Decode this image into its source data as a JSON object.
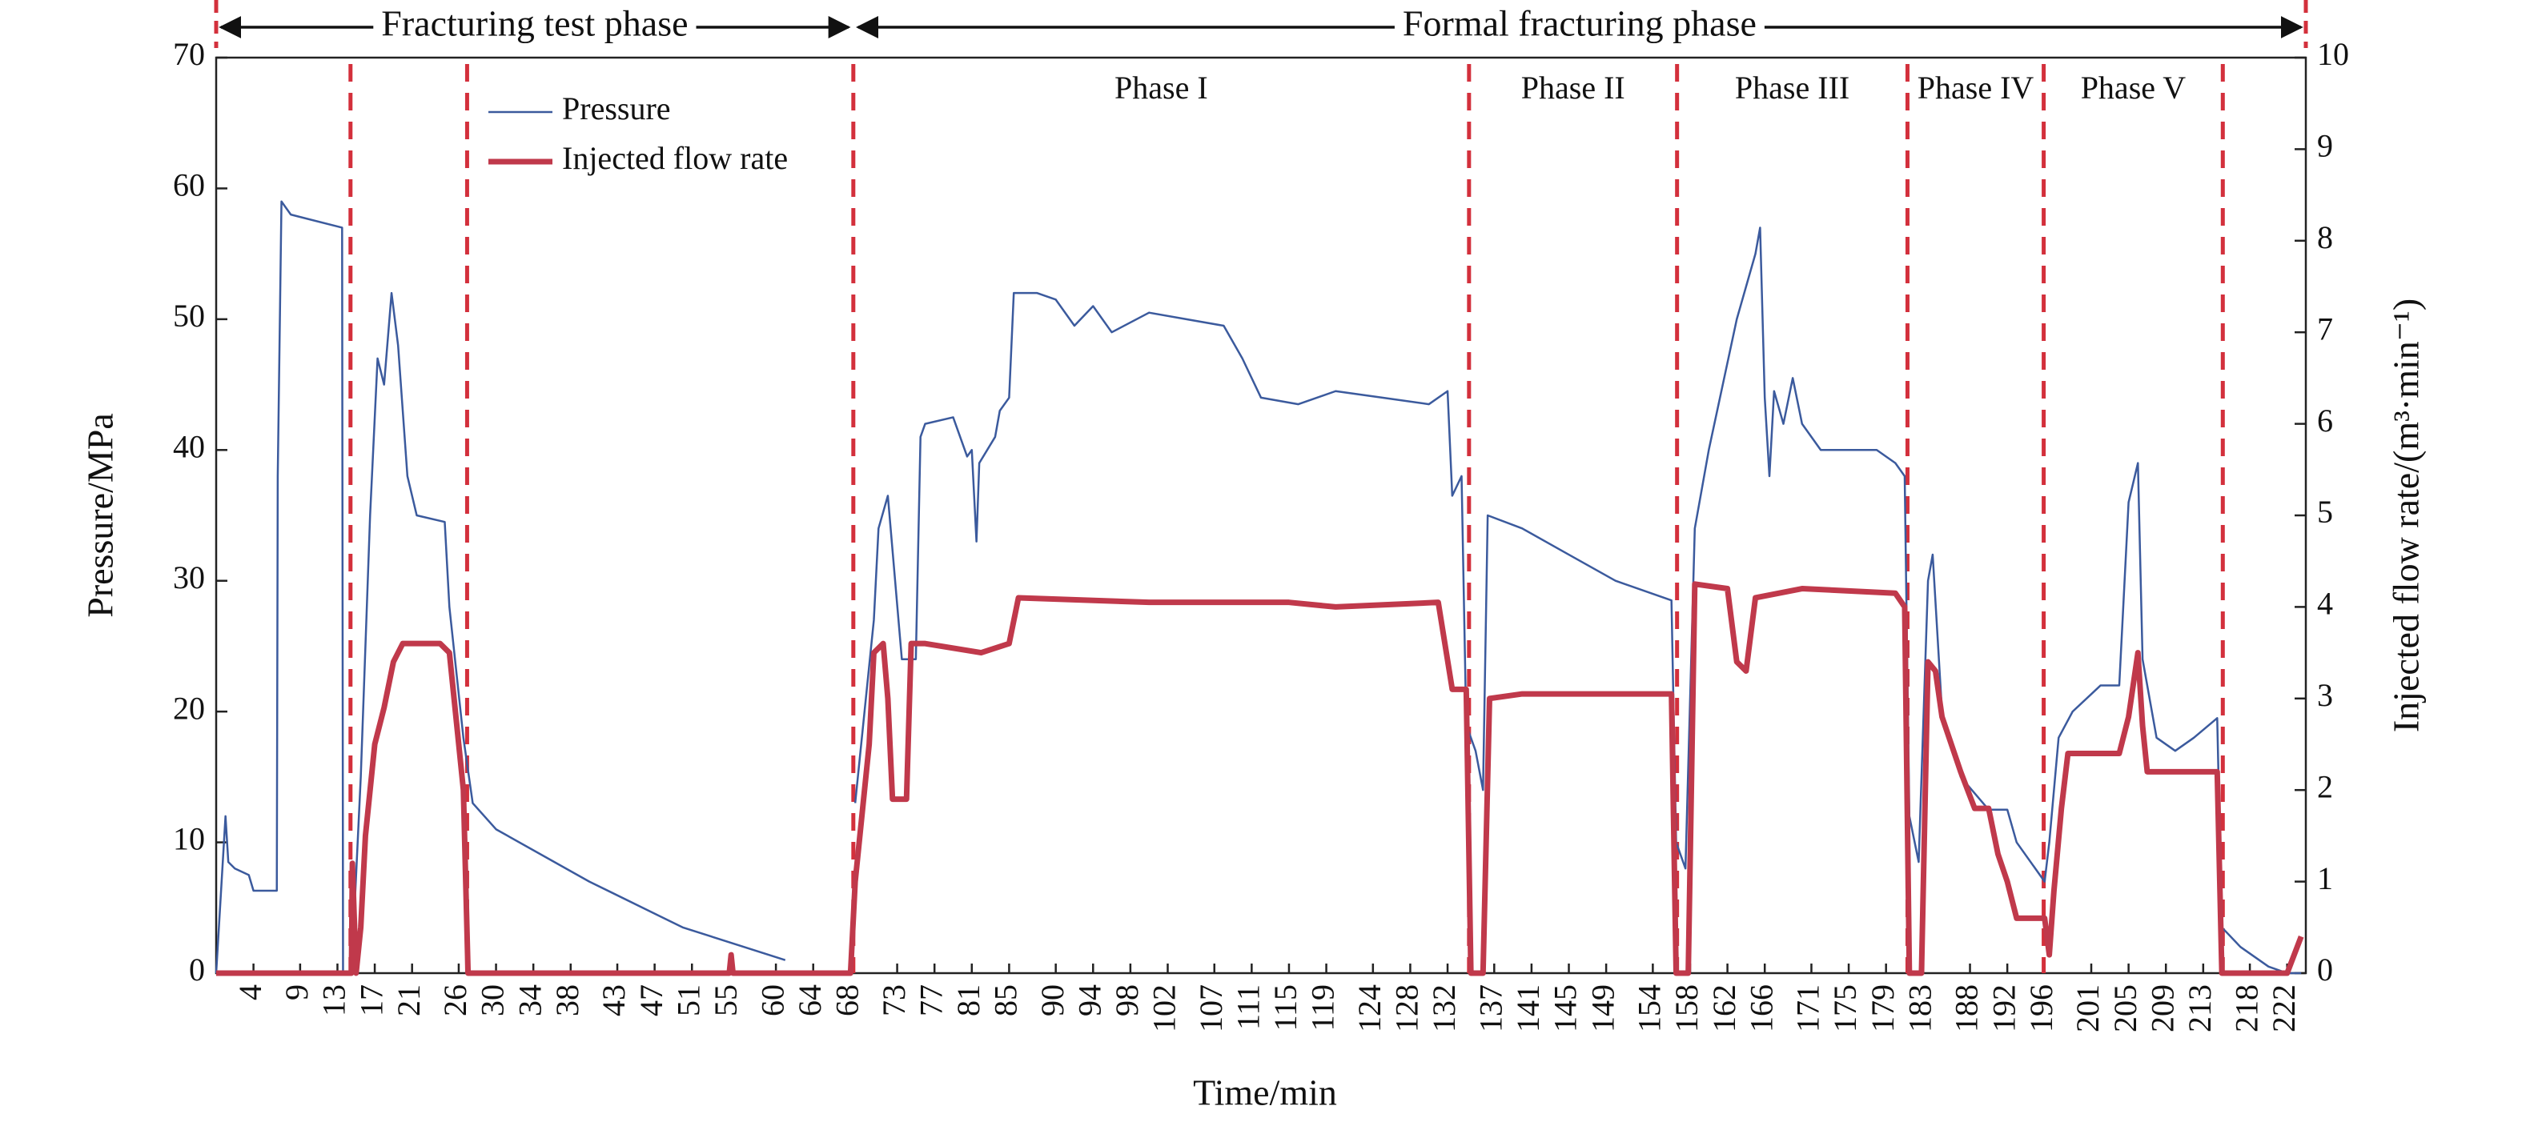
{
  "chart_data": {
    "type": "line",
    "x_label": "Time/min",
    "y_label": "Pressure/MPa",
    "y2_label": "Injected flow rate/(m³·min⁻¹)",
    "xlim": [
      0,
      224
    ],
    "xticks": [
      4,
      9,
      13,
      17,
      21,
      26,
      30,
      34,
      38,
      43,
      47,
      51,
      55,
      60,
      64,
      68,
      73,
      77,
      81,
      85,
      90,
      94,
      98,
      102,
      107,
      111,
      115,
      119,
      124,
      128,
      132,
      137,
      141,
      145,
      149,
      154,
      158,
      162,
      166,
      171,
      175,
      179,
      183,
      188,
      192,
      196,
      201,
      205,
      209,
      213,
      218,
      222
    ],
    "ylim": [
      0,
      70
    ],
    "yticks": [
      0,
      10,
      20,
      30,
      40,
      50,
      60,
      70
    ],
    "y2lim": [
      0,
      10
    ],
    "y2ticks": [
      0,
      1,
      2,
      3,
      4,
      5,
      6,
      7,
      8,
      9,
      10
    ],
    "legend": "upper left",
    "boundary_color": "#d3303c",
    "phase_boundaries": [
      14.4,
      26.9,
      68.3,
      134.3,
      156.6,
      181.3,
      195.9,
      215.1
    ],
    "phase_labels": [
      "Phase I",
      "Phase II",
      "Phase III",
      "Phase IV",
      "Phase V"
    ],
    "stage_labels": [
      "Fracturing test phase",
      "Formal fracturing phase"
    ],
    "series": [
      {
        "name": "Pressure",
        "color": "#3b5a9d",
        "x": [
          0,
          1,
          1.3,
          2,
          3.5,
          4,
          6.5,
          6.6,
          7,
          8,
          13.5,
          13.6,
          14.5,
          15.5,
          16.5,
          17.3,
          18,
          18.8,
          19.5,
          20.5,
          21.5,
          24.5,
          25,
          26.5,
          27.5,
          30,
          40,
          50,
          61,
          64,
          68.5,
          69.5,
          70.5,
          71,
          72,
          73.5,
          75,
          75.5,
          76,
          79,
          80.5,
          81,
          81.5,
          81.8,
          83.5,
          84,
          85,
          85.5,
          88,
          90,
          92,
          94,
          96,
          100,
          104,
          108,
          110,
          112,
          116,
          120,
          125,
          130,
          132,
          132.5,
          133.5,
          134,
          135,
          135.8,
          136.3,
          140,
          145,
          150,
          156,
          156.5,
          157.5,
          158.5,
          160,
          163,
          165,
          165.5,
          166,
          166.5,
          167,
          168,
          169,
          170,
          172,
          178,
          180,
          181,
          181.5,
          182.5,
          183.5,
          184,
          185,
          187,
          190,
          192,
          193,
          196,
          196.5,
          197.5,
          199,
          202,
          204,
          205,
          206,
          206.5,
          208,
          210,
          212,
          214.5,
          215,
          217,
          220,
          222,
          223.5
        ],
        "values": [
          0,
          12,
          8.5,
          8,
          7.5,
          6.3,
          6.3,
          38,
          59,
          58,
          57,
          0,
          0,
          15,
          35,
          47,
          45,
          52,
          48,
          38,
          35,
          34.5,
          28,
          18,
          13,
          11,
          7,
          3.5,
          1,
          null,
          13,
          20,
          27,
          34,
          36.5,
          24,
          24,
          41,
          42,
          42.5,
          39.5,
          40,
          33,
          39,
          41,
          43,
          44,
          52,
          52,
          51.5,
          49.5,
          51,
          49,
          50.5,
          50,
          49.5,
          47,
          44,
          43.5,
          44.5,
          44,
          43.5,
          44.5,
          36.5,
          38,
          19,
          17,
          14,
          35,
          34,
          32,
          30,
          28.5,
          10,
          8,
          34,
          40,
          50,
          55,
          57,
          44,
          38,
          44.5,
          42,
          45.5,
          42,
          40,
          40,
          39,
          38,
          12,
          8.5,
          30,
          32,
          20,
          15,
          12.5,
          12.5,
          10,
          7,
          10,
          18,
          20,
          22,
          22,
          36,
          39,
          24,
          18,
          17,
          18,
          19.5,
          3.5,
          2,
          0.5,
          0,
          0
        ]
      },
      {
        "name": "Injected flow rate",
        "color": "#c0394b",
        "axis": "y2",
        "x": [
          0,
          14.5,
          14.6,
          15,
          15.5,
          16,
          17,
          18,
          19,
          20,
          21,
          24,
          25,
          26.5,
          27,
          55,
          55.2,
          55.4,
          68,
          68.5,
          69.5,
          70,
          70.5,
          71.5,
          72,
          72.5,
          74,
          74.5,
          76,
          82,
          85,
          86,
          100,
          115,
          120,
          131,
          132.5,
          134,
          134.5,
          135.8,
          136.5,
          140,
          156,
          156.5,
          157.8,
          158.5,
          162,
          163,
          164,
          165,
          170,
          180,
          181,
          181.5,
          182.8,
          183.5,
          184.3,
          185,
          187,
          188.5,
          190,
          191,
          192,
          193,
          196,
          196.5,
          197,
          197.8,
          198.5,
          204,
          205,
          206,
          206.5,
          207,
          214.5,
          215,
          222,
          223.5
        ],
        "values": [
          0,
          0,
          1.2,
          0,
          0.5,
          1.5,
          2.5,
          2.9,
          3.4,
          3.6,
          3.6,
          3.6,
          3.5,
          2,
          0,
          0,
          0.2,
          0,
          0,
          1,
          2,
          2.5,
          3.5,
          3.6,
          3,
          1.9,
          1.9,
          3.6,
          3.6,
          3.5,
          3.6,
          4.1,
          4.05,
          4.05,
          4,
          4.05,
          3.1,
          3.1,
          0,
          0,
          3,
          3.05,
          3.05,
          0,
          0,
          4.25,
          4.2,
          3.4,
          3.3,
          4.1,
          4.2,
          4.15,
          4,
          0,
          0,
          3.4,
          3.3,
          2.8,
          2.2,
          1.8,
          1.8,
          1.3,
          1,
          0.6,
          0.6,
          0.2,
          0.9,
          1.8,
          2.4,
          2.4,
          2.8,
          3.5,
          2.7,
          2.2,
          2.2,
          0,
          0,
          0.4
        ]
      }
    ]
  }
}
